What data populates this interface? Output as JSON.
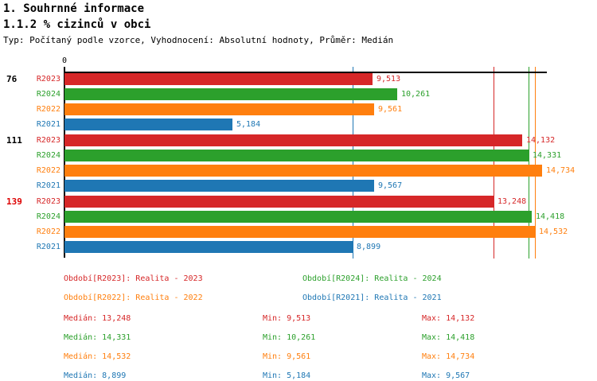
{
  "header": {
    "title1": "1. Souhrnné informace",
    "title2": "1.1.2 % cizinců v obci",
    "subtitle": "Typ: Počítaný podle vzorce, Vyhodnocení: Absolutní hodnoty, Průměr: Medián"
  },
  "colors": {
    "R2023": "#d62728",
    "R2024": "#2ca02c",
    "R2022": "#ff7f0e",
    "R2021": "#1f77b4",
    "axis": "#000000",
    "group_label_highlight": "#dd0000"
  },
  "chart_data": {
    "type": "bar",
    "orientation": "horizontal",
    "title": "1.1.2 % cizinců v obci",
    "xlabel": "",
    "ylabel": "",
    "xlim": [
      0,
      14.88
    ],
    "grid": false,
    "axis": {
      "origin_label": "0"
    },
    "series_order": [
      "R2023",
      "R2024",
      "R2022",
      "R2021"
    ],
    "groups": [
      {
        "label": "76",
        "label_color": "#000000",
        "bars": [
          {
            "series": "R2023",
            "value": 9.513,
            "display": "9,513"
          },
          {
            "series": "R2024",
            "value": 10.261,
            "display": "10,261"
          },
          {
            "series": "R2022",
            "value": 9.561,
            "display": "9,561"
          },
          {
            "series": "R2021",
            "value": 5.184,
            "display": "5,184"
          }
        ]
      },
      {
        "label": "111",
        "label_color": "#000000",
        "bars": [
          {
            "series": "R2023",
            "value": 14.132,
            "display": "14,132"
          },
          {
            "series": "R2024",
            "value": 14.331,
            "display": "14,331"
          },
          {
            "series": "R2022",
            "value": 14.734,
            "display": "14,734"
          },
          {
            "series": "R2021",
            "value": 9.567,
            "display": "9,567"
          }
        ]
      },
      {
        "label": "139",
        "label_color": "#dd0000",
        "bars": [
          {
            "series": "R2023",
            "value": 13.248,
            "display": "13,248"
          },
          {
            "series": "R2024",
            "value": 14.418,
            "display": "14,418"
          },
          {
            "series": "R2022",
            "value": 14.532,
            "display": "14,532"
          },
          {
            "series": "R2021",
            "value": 8.899,
            "display": "8,899"
          }
        ]
      }
    ],
    "median_lines": [
      {
        "series": "R2023",
        "value": 13.248
      },
      {
        "series": "R2024",
        "value": 14.331
      },
      {
        "series": "R2022",
        "value": 14.532
      },
      {
        "series": "R2021",
        "value": 8.899
      }
    ]
  },
  "legend": [
    {
      "series": "R2023",
      "label": "Období[R2023]: Realita - 2023"
    },
    {
      "series": "R2024",
      "label": "Období[R2024]: Realita - 2024"
    },
    {
      "series": "R2022",
      "label": "Období[R2022]: Realita - 2022"
    },
    {
      "series": "R2021",
      "label": "Období[R2021]: Realita - 2021"
    }
  ],
  "stats": [
    {
      "series": "R2023",
      "median": "Medián: 13,248",
      "min": "Min: 9,513",
      "max": "Max: 14,132"
    },
    {
      "series": "R2024",
      "median": "Medián: 14,331",
      "min": "Min: 10,261",
      "max": "Max: 14,418"
    },
    {
      "series": "R2022",
      "median": "Medián: 14,532",
      "min": "Min: 9,561",
      "max": "Max: 14,734"
    },
    {
      "series": "R2021",
      "median": "Medián: 8,899",
      "min": "Min: 5,184",
      "max": "Max: 9,567"
    }
  ]
}
